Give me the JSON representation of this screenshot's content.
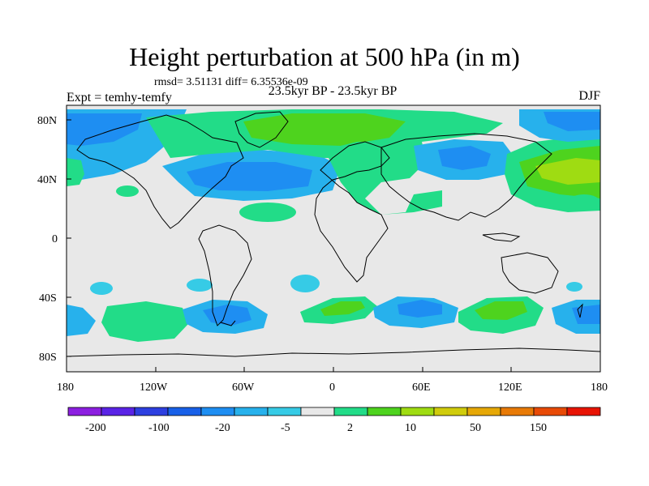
{
  "title": "Height perturbation at 500 hPa (in m)",
  "stats": "rmsd= 3.51131 diff= 6.35536e-09",
  "left_label": "Expt = temhy-temfy",
  "center_label": "23.5kyr BP - 23.5kyr BP",
  "right_label": "DJF",
  "lat_ticks": [
    "80N",
    "40N",
    "0",
    "40S",
    "80S"
  ],
  "lon_ticks": [
    "180",
    "120W",
    "60W",
    "0",
    "60E",
    "120E",
    "180"
  ],
  "colorbar": {
    "colors": [
      "#8c1fe0",
      "#5a23e6",
      "#2d3fe0",
      "#1860e8",
      "#1e8ef2",
      "#27b1ec",
      "#36cbe6",
      "#e8e8e8",
      "#22dc88",
      "#4ed31e",
      "#9fdc12",
      "#d0cc0c",
      "#e6a806",
      "#e87a06",
      "#e84a06",
      "#e81404"
    ],
    "labels": [
      "-200",
      "-100",
      "-20",
      "-5",
      "2",
      "10",
      "50",
      "150"
    ]
  },
  "colors": {
    "land_background": "#e8e8e8",
    "coast": "#000000"
  }
}
